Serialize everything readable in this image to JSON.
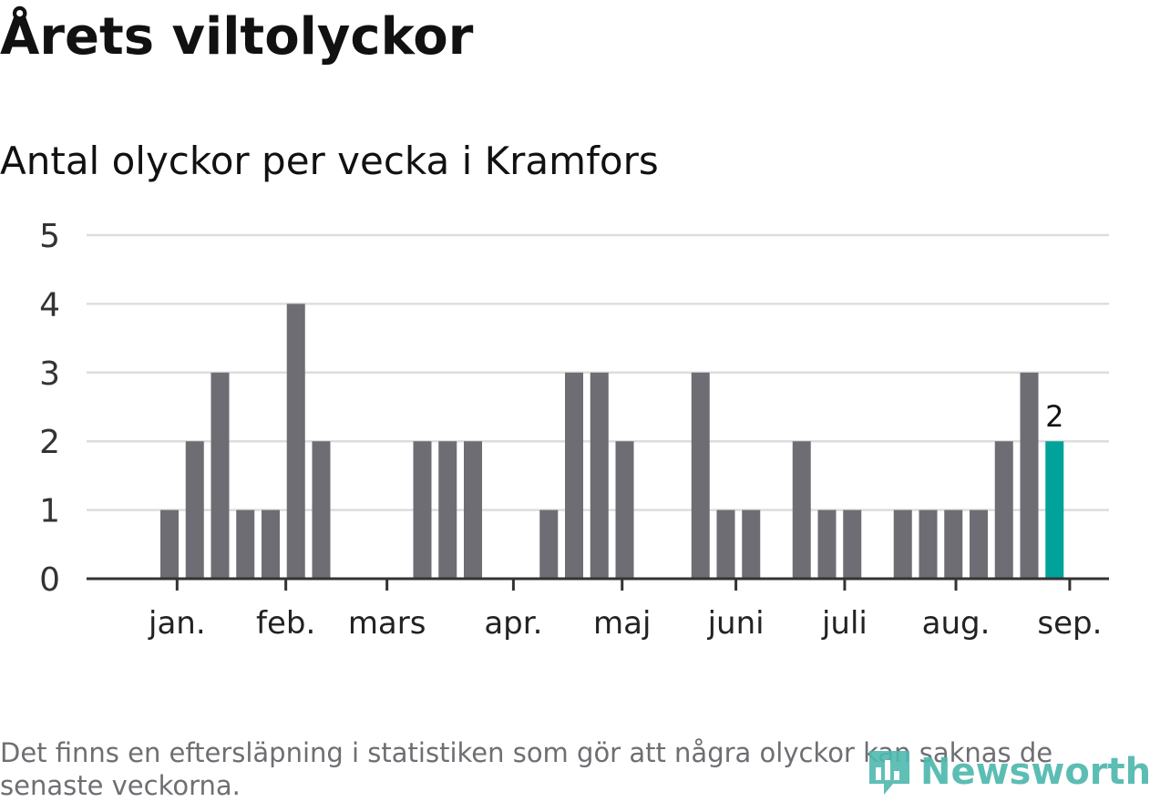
{
  "title": "Årets viltolyckor",
  "subtitle": "Antal olyckor per vecka i Kramfors",
  "footnote": "Det finns en eftersläpning i statistiken som gör att några olyckor kan saknas de senaste veckorna.",
  "logo": {
    "text": "Newsworthy",
    "icon": "bar-chart-speech-icon"
  },
  "colors": {
    "bar": "#6e6d73",
    "highlight": "#00a29a",
    "grid": "#dddddd",
    "axis": "#333333",
    "text": "#333333"
  },
  "chart_data": {
    "type": "bar",
    "title": "Antal olyckor per vecka i Kramfors",
    "xlabel": "",
    "ylabel": "",
    "ylim": [
      0,
      5
    ],
    "yticks": [
      0,
      1,
      2,
      3,
      4,
      5
    ],
    "grid": true,
    "weeks": [
      1,
      2,
      3,
      4,
      5,
      6,
      7,
      8,
      9,
      10,
      11,
      12,
      13,
      14,
      15,
      16,
      17,
      18,
      19,
      20,
      21,
      22,
      23,
      24,
      25,
      26,
      27,
      28,
      29,
      30,
      31,
      32,
      33,
      34,
      35,
      36,
      37,
      38
    ],
    "values": [
      0,
      0,
      1,
      2,
      3,
      1,
      1,
      4,
      2,
      0,
      0,
      0,
      2,
      2,
      2,
      0,
      0,
      1,
      3,
      3,
      2,
      0,
      0,
      3,
      1,
      1,
      0,
      2,
      1,
      1,
      0,
      1,
      1,
      1,
      1,
      2,
      3,
      2
    ],
    "highlight_index": 37,
    "highlight_label": "2",
    "month_ticks": [
      {
        "label": "jan.",
        "week": 3.3
      },
      {
        "label": "feb.",
        "week": 7.6
      },
      {
        "label": "mars",
        "week": 11.6
      },
      {
        "label": "apr.",
        "week": 16.6
      },
      {
        "label": "maj",
        "week": 20.9
      },
      {
        "label": "juni",
        "week": 25.4
      },
      {
        "label": "juli",
        "week": 29.7
      },
      {
        "label": "aug.",
        "week": 34.1
      },
      {
        "label": "sep.",
        "week": 38.6
      }
    ]
  }
}
